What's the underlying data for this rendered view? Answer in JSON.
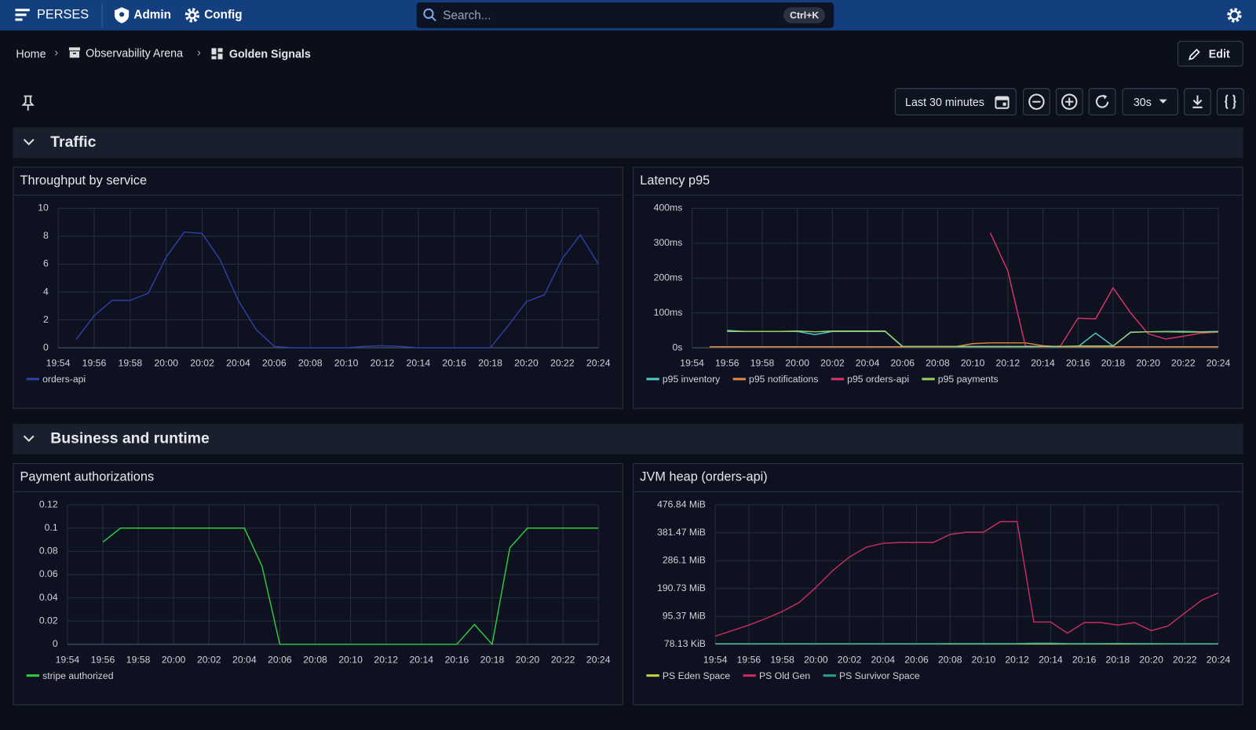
{
  "nav": {
    "brand": "PERSES",
    "admin": "Admin",
    "config": "Config",
    "search": "Search...",
    "shortcut": "Ctrl+K"
  },
  "breadcrumb": [
    "Home",
    "Observability Arena",
    "Golden Signals"
  ],
  "edit": "Edit",
  "toolbar": {
    "time_range": "Last 30 minutes",
    "refresh": "30s"
  },
  "rows": [
    {
      "title": "Traffic"
    },
    {
      "title": "Business and runtime"
    }
  ],
  "chart_data": [
    {
      "type": "line",
      "title": "Throughput by service",
      "x": [
        "19:54",
        null,
        "19:56",
        null,
        "19:58",
        null,
        "20:00",
        null,
        "20:02",
        null,
        "20:04",
        null,
        "20:06",
        null,
        "20:08",
        null,
        "20:10",
        null,
        "20:12",
        null,
        "20:14",
        null,
        "20:16",
        null,
        "20:18",
        null,
        "20:20",
        null,
        "20:22",
        null,
        "20:24"
      ],
      "ylim": [
        0,
        10
      ],
      "yticks": [
        0,
        2,
        4,
        6,
        8,
        10
      ],
      "grid": true,
      "series": [
        {
          "name": "orders-api",
          "color": "#2f3fa8",
          "values": [
            null,
            0.6,
            2.3,
            3.4,
            3.4,
            3.9,
            6.5,
            8.3,
            8.2,
            6.3,
            3.4,
            1.3,
            0.1,
            0,
            0,
            0,
            0,
            0.1,
            0.15,
            0.1,
            0,
            0,
            0,
            0,
            0,
            1.6,
            3.3,
            3.8,
            6.4,
            8.1,
            6.0
          ]
        }
      ]
    },
    {
      "type": "line",
      "title": "Latency p95",
      "x": [
        "19:54",
        null,
        "19:56",
        null,
        "19:58",
        null,
        "20:00",
        null,
        "20:02",
        null,
        "20:04",
        null,
        "20:06",
        null,
        "20:08",
        null,
        "20:10",
        null,
        "20:12",
        null,
        "20:14",
        null,
        "20:16",
        null,
        "20:18",
        null,
        "20:20",
        null,
        "20:22",
        null,
        "20:24"
      ],
      "ylim": [
        0,
        400
      ],
      "yticks": [
        {
          "value": 0,
          "label": "0s"
        },
        {
          "value": 100,
          "label": "100ms"
        },
        {
          "value": 200,
          "label": "200ms"
        },
        {
          "value": 300,
          "label": "300ms"
        },
        {
          "value": 400,
          "label": "400ms"
        }
      ],
      "grid": true,
      "series": [
        {
          "name": "p95 inventory",
          "color": "#4fc9c4",
          "values": [
            null,
            null,
            50,
            47,
            47,
            47,
            47,
            38,
            47,
            47,
            47,
            47,
            3,
            3,
            3,
            3,
            3,
            3,
            3,
            3,
            3,
            3,
            3,
            42,
            5,
            45,
            46,
            47,
            47,
            46,
            47
          ]
        },
        {
          "name": "p95 notifications",
          "color": "#e0874a",
          "values": [
            null,
            3,
            3,
            3,
            3,
            3,
            3,
            3,
            3,
            3,
            3,
            3,
            3,
            3,
            3,
            3,
            12,
            14,
            14,
            14,
            6,
            3,
            3,
            3,
            3,
            3,
            3,
            3,
            3,
            3,
            3
          ]
        },
        {
          "name": "p95 orders-api",
          "color": "#d9336b",
          "values": [
            null,
            null,
            null,
            null,
            null,
            null,
            null,
            null,
            null,
            null,
            null,
            null,
            null,
            null,
            null,
            null,
            null,
            330,
            220,
            5,
            3,
            5,
            85,
            83,
            172,
            100,
            40,
            25,
            33,
            42,
            45
          ]
        },
        {
          "name": "p95 payments",
          "color": "#9ccc65",
          "values": [
            null,
            null,
            47,
            47,
            47,
            47,
            48,
            46,
            48,
            48,
            48,
            48,
            4,
            4,
            4,
            4,
            4,
            4,
            4,
            4,
            4,
            4,
            5,
            5,
            5,
            44,
            46,
            46,
            45,
            45,
            46
          ]
        }
      ]
    },
    {
      "type": "line",
      "title": "Payment authorizations",
      "x": [
        "19:54",
        null,
        "19:56",
        null,
        "19:58",
        null,
        "20:00",
        null,
        "20:02",
        null,
        "20:04",
        null,
        "20:06",
        null,
        "20:08",
        null,
        "20:10",
        null,
        "20:12",
        null,
        "20:14",
        null,
        "20:16",
        null,
        "20:18",
        null,
        "20:20",
        null,
        "20:22",
        null,
        "20:24"
      ],
      "ylim": [
        0,
        0.12
      ],
      "yticks": [
        0,
        0.02,
        0.04,
        0.06,
        0.08,
        0.1,
        0.12
      ],
      "grid": true,
      "series": [
        {
          "name": "stripe authorized",
          "color": "#2ecc40",
          "values": [
            null,
            null,
            0.088,
            0.1,
            0.1,
            0.1,
            0.1,
            0.1,
            0.1,
            0.1,
            0.1,
            0.067,
            0,
            0,
            0,
            0,
            0,
            0,
            0,
            0,
            0,
            0,
            0,
            0.017,
            0,
            0.083,
            0.1,
            0.1,
            0.1,
            0.1,
            0.1
          ]
        }
      ]
    },
    {
      "type": "line",
      "title": "JVM heap (orders-api)",
      "x": [
        "19:54",
        null,
        "19:56",
        null,
        "19:58",
        null,
        "20:00",
        null,
        "20:02",
        null,
        "20:04",
        null,
        "20:06",
        null,
        "20:08",
        null,
        "20:10",
        null,
        "20:12",
        null,
        "20:14",
        null,
        "20:16",
        null,
        "20:18",
        null,
        "20:20",
        null,
        "20:22",
        null,
        "20:24"
      ],
      "ylim": [
        80000,
        500000000
      ],
      "yticks": [
        {
          "value": 80000,
          "label": "78.13 KiB"
        },
        {
          "value": 100000000,
          "label": "95.37 MiB"
        },
        {
          "value": 200000000,
          "label": "190.73 MiB"
        },
        {
          "value": 300000000,
          "label": "286.1 MiB"
        },
        {
          "value": 400000000,
          "label": "381.47 MiB"
        },
        {
          "value": 500000000,
          "label": "476.84 MiB"
        }
      ],
      "grid": true,
      "series": [
        {
          "name": "PS Eden Space",
          "color": "#c5d63c",
          "values": [
            1500000,
            1500000,
            1500000,
            1500000,
            1500000,
            1500000,
            1500000,
            1500000,
            1500000,
            1500000,
            1500000,
            1500000,
            1500000,
            1500000,
            1500000,
            1500000,
            1500000,
            1500000,
            1500000,
            1500000,
            1500000,
            1500000,
            1500000,
            1500000,
            1500000,
            1500000,
            1500000,
            1500000,
            1500000,
            1500000,
            1500000
          ]
        },
        {
          "name": "PS Old Gen",
          "color": "#c92c63",
          "values": [
            29000000,
            49000000,
            69000000,
            92000000,
            118000000,
            150000000,
            204000000,
            264000000,
            313000000,
            348000000,
            362000000,
            365000000,
            365000000,
            365000000,
            394000000,
            402000000,
            402000000,
            440000000,
            440000000,
            80000000,
            80000000,
            40000000,
            78000000,
            78000000,
            69000000,
            78000000,
            49000000,
            66000000,
            112000000,
            158000000,
            184000000
          ]
        },
        {
          "name": "PS Survivor Space",
          "color": "#2a9d8f",
          "values": [
            2500000,
            2500000,
            2500000,
            2500000,
            2500000,
            2500000,
            2500000,
            2500000,
            2500000,
            2500000,
            2500000,
            2500000,
            2500000,
            2500000,
            3000000,
            3000000,
            3000000,
            3000000,
            3000000,
            4000000,
            4000000,
            3000000,
            3000000,
            3000000,
            3500000,
            3000000,
            3000000,
            2500000,
            2500000,
            2500000,
            2500000
          ]
        }
      ]
    }
  ]
}
